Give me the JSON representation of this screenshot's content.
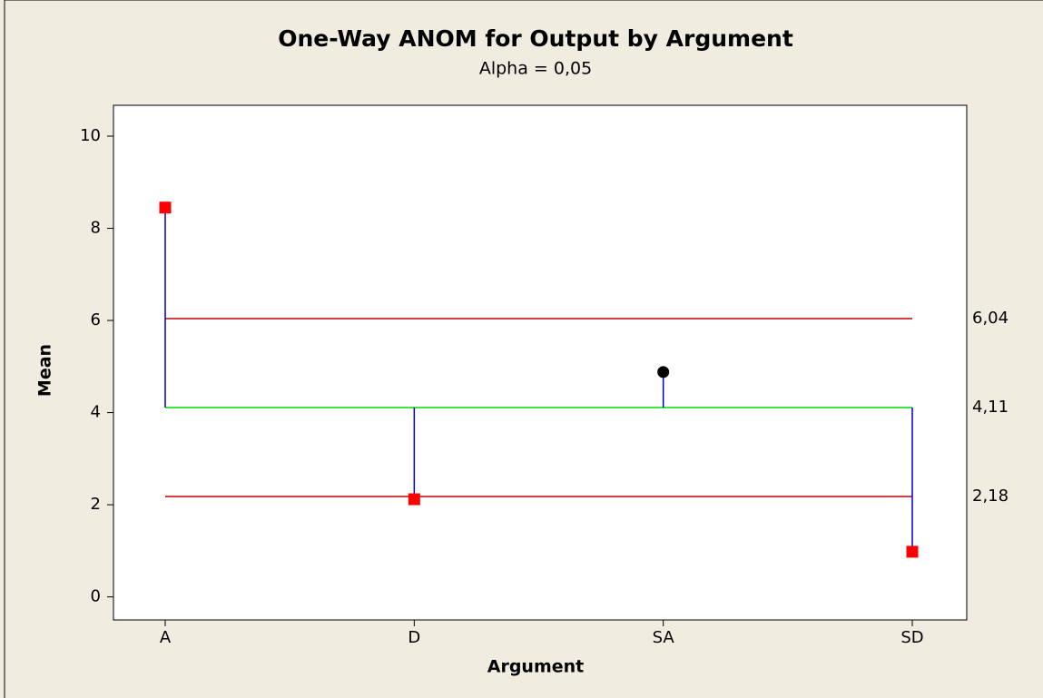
{
  "chart_data": {
    "type": "anom",
    "title": "One-Way ANOM for Output by Argument",
    "subtitle": "Alpha = 0,05",
    "x_label": "Argument",
    "y_label": "Mean",
    "categories": [
      "A",
      "D",
      "SA",
      "SD"
    ],
    "values": [
      8.45,
      2.12,
      4.88,
      0.98
    ],
    "marker_colors": [
      "#ff0000",
      "#ff0000",
      "#000000",
      "#ff0000"
    ],
    "marker_shapes": [
      "square",
      "square",
      "circle",
      "square"
    ],
    "stem_color": "#0000cc",
    "reference_lines": [
      {
        "value": 6.04,
        "label": "6,04",
        "color": "#c00000"
      },
      {
        "value": 4.11,
        "label": "4,11",
        "color": "#00dd00"
      },
      {
        "value": 2.18,
        "label": "2,18",
        "color": "#c00000"
      }
    ],
    "center_line": 1,
    "ylim": [
      -0.5,
      10.67
    ],
    "yticks": [
      0,
      2,
      4,
      6,
      8,
      10
    ]
  }
}
